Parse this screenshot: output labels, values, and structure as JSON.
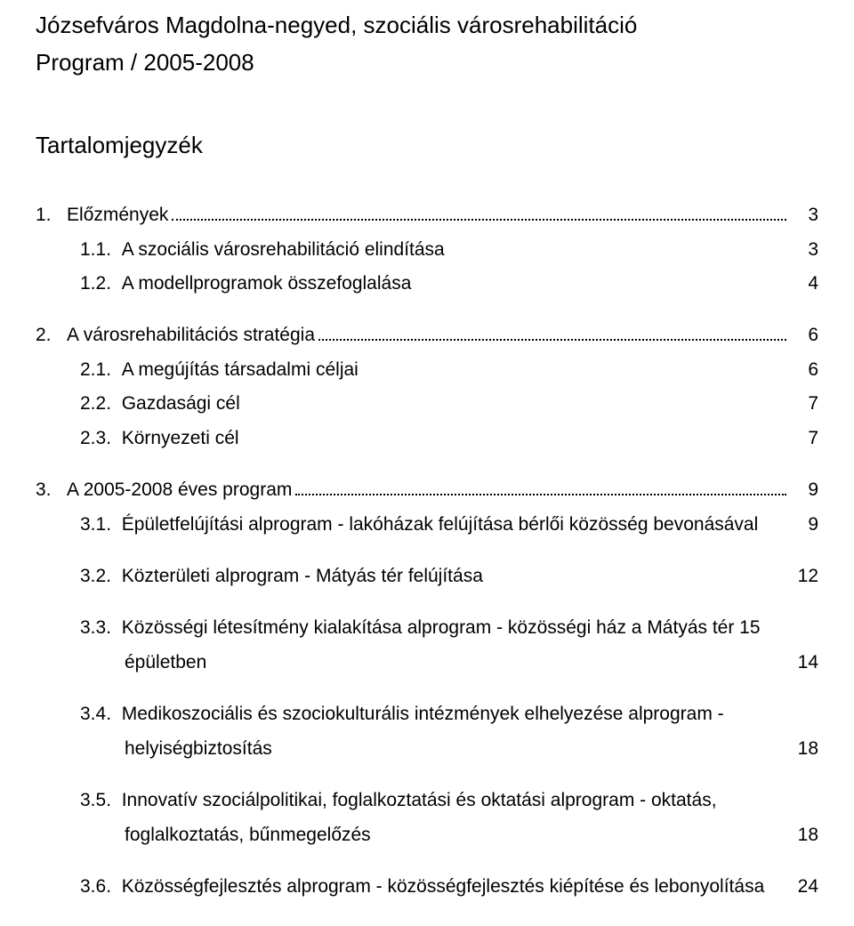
{
  "title": "Józsefváros Magdolna-negyed, szociális városrehabilitáció",
  "subtitle": "Program / 2005-2008",
  "tocHeading": "Tartalomjegyzék",
  "toc": [
    {
      "num": "1.",
      "label": "Előzmények",
      "page": "3",
      "dots": true,
      "indent": 0,
      "gap": false,
      "wrap": false
    },
    {
      "num": "1.1.",
      "label": "A szociális városrehabilitáció elindítása",
      "page": "3",
      "dots": false,
      "indent": 1,
      "gap": false,
      "wrap": false
    },
    {
      "num": "1.2.",
      "label": "A modellprogramok összefoglalása",
      "page": "4",
      "dots": false,
      "indent": 1,
      "gap": false,
      "wrap": false
    },
    {
      "num": "2.",
      "label": "A városrehabilitációs stratégia",
      "page": "6",
      "dots": true,
      "indent": 0,
      "gap": true,
      "wrap": false
    },
    {
      "num": "2.1.",
      "label": "A megújítás társadalmi céljai",
      "page": "6",
      "dots": false,
      "indent": 1,
      "gap": false,
      "wrap": false
    },
    {
      "num": "2.2.",
      "label": "Gazdasági cél",
      "page": "7",
      "dots": false,
      "indent": 1,
      "gap": false,
      "wrap": false
    },
    {
      "num": "2.3.",
      "label": "Környezeti cél",
      "page": "7",
      "dots": false,
      "indent": 1,
      "gap": false,
      "wrap": false
    },
    {
      "num": "3.",
      "label": "A 2005-2008 éves program",
      "page": "9",
      "dots": true,
      "indent": 0,
      "gap": true,
      "wrap": false
    },
    {
      "num": "3.1.",
      "label": "Épületfelújítási alprogram - lakóházak felújítása bérlői közösség  bevonásával",
      "page": "9",
      "dots": false,
      "indent": 1,
      "gap": false,
      "wrap": false
    },
    {
      "num": "3.2.",
      "label": "Közterületi alprogram - Mátyás tér felújítása",
      "page": "12",
      "dots": false,
      "indent": 1,
      "gap": true,
      "wrap": false
    },
    {
      "num": "3.3.",
      "label": "Közösségi létesítmény kialakítása alprogram - közösségi ház  a Mátyás tér 15",
      "label2": "épületben",
      "page": "14",
      "dots": false,
      "indent": 1,
      "gap": true,
      "wrap": true
    },
    {
      "num": "3.4.",
      "label": "Medikoszociális és szociokulturális intézmények elhelyezése  alprogram -",
      "label2": "helyiségbiztosítás",
      "page": "18",
      "dots": false,
      "indent": 1,
      "gap": true,
      "wrap": true
    },
    {
      "num": "3.5.",
      "label": "Innovatív szociálpolitikai, foglalkoztatási és oktatási alprogram  - oktatás,",
      "label2": "foglalkoztatás, bűnmegelőzés",
      "page": "18",
      "dots": false,
      "indent": 1,
      "gap": true,
      "wrap": true
    },
    {
      "num": "3.6.",
      "label": "Közösségfejlesztés alprogram - közösségfejlesztés kiépítése és  lebonyolítása",
      "page": "24",
      "dots": false,
      "indent": 1,
      "gap": true,
      "wrap": false
    }
  ]
}
